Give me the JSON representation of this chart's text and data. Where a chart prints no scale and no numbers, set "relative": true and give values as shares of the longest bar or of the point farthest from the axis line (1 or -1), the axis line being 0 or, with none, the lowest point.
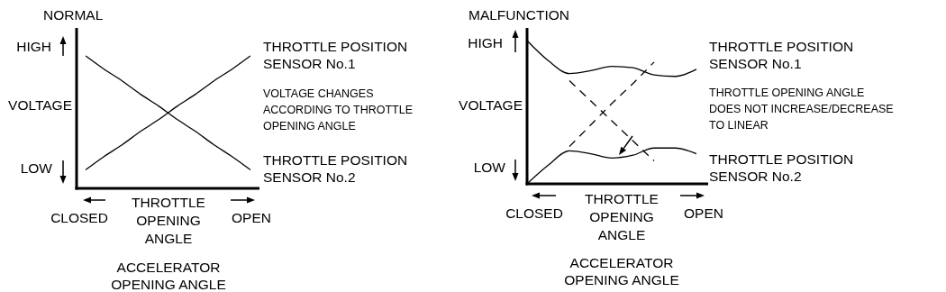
{
  "chart_data": [
    {
      "type": "line",
      "title": "NORMAL",
      "ylabel": "VOLTAGE",
      "xlabel": "THROTTLE\nOPENING\nANGLE",
      "relative": true,
      "categories": [
        null,
        null,
        null,
        null,
        null,
        null,
        null,
        null,
        null,
        null
      ],
      "series": [
        {
          "name": "THROTTLE POSITION\nSENSOR No.1",
          "color": "#000000",
          "values": [
            0.14,
            0.24,
            0.33,
            0.43,
            0.52,
            0.62,
            0.71,
            0.81,
            0.9,
            1
          ]
        },
        {
          "name": "THROTTLE POSITION\nSENSOR No.2",
          "color": "#000000",
          "values": [
            1,
            0.9,
            0.81,
            0.71,
            0.62,
            0.52,
            0.43,
            0.33,
            0.24,
            0.14
          ]
        }
      ],
      "annotations": [
        "HIGH",
        "LOW",
        "CLOSED",
        "OPEN",
        "VOLTAGE CHANGES\nACCORDING TO THROTTLE\nOPENING ANGLE",
        "ACCELERATOR\nOPENING ANGLE"
      ]
    },
    {
      "type": "line",
      "title": "MALFUNCTION",
      "ylabel": "VOLTAGE",
      "xlabel": "THROTTLE\nOPENING\nANGLE",
      "relative": true,
      "categories": [
        null,
        null,
        null,
        null,
        null,
        null,
        null,
        null,
        null
      ],
      "series": [
        {
          "name": "THROTTLE POSITION\nSENSOR No.1",
          "color": "#000000",
          "values": [
            1,
            0.86,
            0.77,
            0.79,
            0.82,
            0.81,
            0.76,
            0.75,
            0.8
          ]
        },
        {
          "name": "THROTTLE POSITION\nSENSOR No.2",
          "color": "#000000",
          "values": [
            0,
            0.13,
            0.23,
            0.21,
            0.18,
            0.2,
            0.25,
            0.25,
            0.21
          ]
        },
        {
          "color": "#000000",
          "line_style": "dashed",
          "values": [
            null,
            null,
            0.72,
            0.58,
            0.44,
            0.3,
            0.16,
            null,
            null
          ]
        },
        {
          "color": "#000000",
          "line_style": "dashed",
          "values": [
            null,
            null,
            0.26,
            0.41,
            0.56,
            0.7,
            0.85,
            null,
            null
          ]
        }
      ],
      "annotations": [
        "HIGH",
        "LOW",
        "CLOSED",
        "OPEN",
        "THROTTLE OPENING ANGLE\nDOES NOT INCREASE/DECREASE\nTO LINEAR",
        "ACCELERATOR\nOPENING ANGLE"
      ]
    }
  ]
}
